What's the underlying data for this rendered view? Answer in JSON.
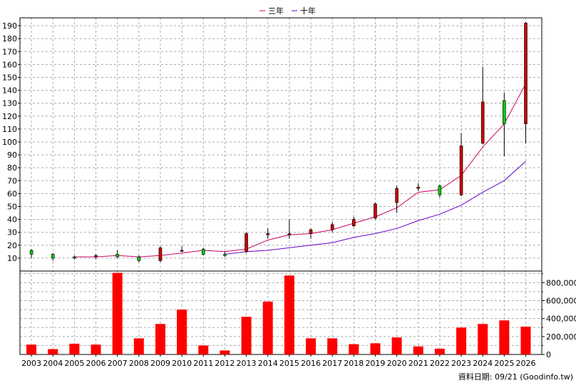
{
  "legend": {
    "ma3_label": "三年",
    "ma10_label": "十年",
    "ma3_color": "#cc0066",
    "ma10_color": "#6600cc"
  },
  "source_label": "資料日期: 09/21  (Goodinfo.tw)",
  "colors": {
    "up": "#cc0000",
    "down": "#00cc00",
    "volume": "#ff0000",
    "grid": "#aaaaaa"
  },
  "chart_data": [
    {
      "type": "candlestick",
      "categories": [
        "2003",
        "2004",
        "2005",
        "2006",
        "2007",
        "2008",
        "2009",
        "2010",
        "2011",
        "2012",
        "2013",
        "2014",
        "2015",
        "2016",
        "2017",
        "2018",
        "2019",
        "2020",
        "2021",
        "2022",
        "2023",
        "2024",
        "2025",
        "2026"
      ],
      "ylim": [
        0,
        195
      ],
      "yticks": [
        10,
        20,
        30,
        40,
        50,
        60,
        70,
        80,
        90,
        100,
        110,
        120,
        130,
        140,
        150,
        160,
        170,
        180,
        190
      ],
      "candles": [
        {
          "open": 16,
          "close": 13,
          "high": 17,
          "low": 10
        },
        {
          "open": 13,
          "close": 10,
          "high": 14,
          "low": 8
        },
        {
          "open": 11,
          "close": 10,
          "high": 12,
          "low": 9
        },
        {
          "open": 11,
          "close": 12,
          "high": 13,
          "low": 9
        },
        {
          "open": 13,
          "close": 11,
          "high": 16,
          "low": 10
        },
        {
          "open": 11,
          "close": 8,
          "high": 12,
          "low": 7
        },
        {
          "open": 8,
          "close": 18,
          "high": 19,
          "low": 7
        },
        {
          "open": 16,
          "close": 16,
          "high": 19,
          "low": 15
        },
        {
          "open": 17,
          "close": 13,
          "high": 18,
          "low": 12
        },
        {
          "open": 13,
          "close": 12,
          "high": 15,
          "low": 11
        },
        {
          "open": 15,
          "close": 29,
          "high": 30,
          "low": 14
        },
        {
          "open": 28,
          "close": 29,
          "high": 33,
          "low": 25
        },
        {
          "open": 28,
          "close": 29,
          "high": 40,
          "low": 25
        },
        {
          "open": 29,
          "close": 32,
          "high": 33,
          "low": 25
        },
        {
          "open": 32,
          "close": 36,
          "high": 38,
          "low": 30
        },
        {
          "open": 35,
          "close": 40,
          "high": 42,
          "low": 34
        },
        {
          "open": 41,
          "close": 52,
          "high": 53,
          "low": 40
        },
        {
          "open": 53,
          "close": 64,
          "high": 66,
          "low": 45
        },
        {
          "open": 64,
          "close": 65,
          "high": 68,
          "low": 62
        },
        {
          "open": 66,
          "close": 59,
          "high": 67,
          "low": 57
        },
        {
          "open": 59,
          "close": 97,
          "high": 107,
          "low": 58
        },
        {
          "open": 99,
          "close": 131,
          "high": 158,
          "low": 98
        },
        {
          "open": 132,
          "close": 114,
          "high": 138,
          "low": 89
        },
        {
          "open": 114,
          "close": 192,
          "high": 193,
          "low": 99
        }
      ],
      "series": [
        {
          "name": "三年",
          "values": [
            null,
            null,
            11,
            11,
            12,
            11,
            12,
            14,
            16,
            15,
            17,
            24,
            28,
            29,
            32,
            37,
            42,
            49,
            61,
            63,
            74,
            96,
            114,
            145
          ]
        },
        {
          "name": "十年",
          "values": [
            null,
            null,
            null,
            null,
            null,
            null,
            null,
            null,
            null,
            13,
            15,
            16,
            18,
            20,
            22,
            26,
            29,
            33,
            39,
            44,
            51,
            61,
            70,
            85
          ]
        }
      ]
    },
    {
      "type": "bar",
      "ylim": [
        0,
        930000
      ],
      "yticks": [
        0,
        200000,
        400000,
        600000,
        800000
      ],
      "ytick_labels": [
        "0",
        "200,000",
        "400,000",
        "600,000",
        "800,000"
      ],
      "values": [
        110000,
        60000,
        120000,
        110000,
        910000,
        180000,
        340000,
        500000,
        100000,
        45000,
        420000,
        590000,
        880000,
        180000,
        180000,
        115000,
        125000,
        190000,
        90000,
        65000,
        300000,
        340000,
        380000,
        310000
      ]
    }
  ]
}
